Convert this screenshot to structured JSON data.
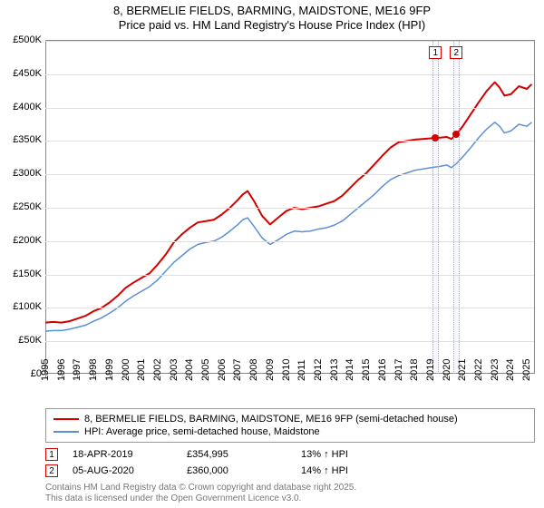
{
  "title": {
    "line1": "8, BERMELIE FIELDS, BARMING, MAIDSTONE, ME16 9FP",
    "line2": "Price paid vs. HM Land Registry's House Price Index (HPI)"
  },
  "chart": {
    "type": "line",
    "background_color": "#ffffff",
    "grid_color": "#e0e0e0",
    "axis_color": "#888888",
    "xlim": [
      1995,
      2025.5
    ],
    "ylim": [
      0,
      500000
    ],
    "y_ticks": [
      {
        "v": 0,
        "label": "£0"
      },
      {
        "v": 50000,
        "label": "£50K"
      },
      {
        "v": 100000,
        "label": "£100K"
      },
      {
        "v": 150000,
        "label": "£150K"
      },
      {
        "v": 200000,
        "label": "£200K"
      },
      {
        "v": 250000,
        "label": "£250K"
      },
      {
        "v": 300000,
        "label": "£300K"
      },
      {
        "v": 350000,
        "label": "£350K"
      },
      {
        "v": 400000,
        "label": "£400K"
      },
      {
        "v": 450000,
        "label": "£450K"
      },
      {
        "v": 500000,
        "label": "£500K"
      }
    ],
    "x_ticks": [
      1995,
      1996,
      1997,
      1998,
      1999,
      2000,
      2001,
      2002,
      2003,
      2004,
      2005,
      2006,
      2007,
      2008,
      2009,
      2010,
      2011,
      2012,
      2013,
      2014,
      2015,
      2016,
      2017,
      2018,
      2019,
      2020,
      2021,
      2022,
      2023,
      2024,
      2025
    ],
    "series": [
      {
        "id": "property",
        "label": "8, BERMELIE FIELDS, BARMING, MAIDSTONE, ME16 9FP (semi-detached house)",
        "color": "#d40000",
        "line_width": 2,
        "data": [
          [
            1995,
            78000
          ],
          [
            1995.5,
            79000
          ],
          [
            1996,
            78000
          ],
          [
            1996.5,
            80000
          ],
          [
            1997,
            84000
          ],
          [
            1997.5,
            88000
          ],
          [
            1998,
            95000
          ],
          [
            1998.5,
            100000
          ],
          [
            1999,
            108000
          ],
          [
            1999.5,
            118000
          ],
          [
            2000,
            130000
          ],
          [
            2000.5,
            138000
          ],
          [
            2001,
            145000
          ],
          [
            2001.5,
            152000
          ],
          [
            2002,
            165000
          ],
          [
            2002.5,
            180000
          ],
          [
            2003,
            198000
          ],
          [
            2003.5,
            210000
          ],
          [
            2004,
            220000
          ],
          [
            2004.5,
            228000
          ],
          [
            2005,
            230000
          ],
          [
            2005.5,
            232000
          ],
          [
            2006,
            240000
          ],
          [
            2006.5,
            250000
          ],
          [
            2007,
            262000
          ],
          [
            2007.3,
            270000
          ],
          [
            2007.6,
            275000
          ],
          [
            2008,
            260000
          ],
          [
            2008.5,
            238000
          ],
          [
            2009,
            225000
          ],
          [
            2009.5,
            235000
          ],
          [
            2010,
            245000
          ],
          [
            2010.5,
            250000
          ],
          [
            2011,
            248000
          ],
          [
            2011.5,
            250000
          ],
          [
            2012,
            252000
          ],
          [
            2012.5,
            256000
          ],
          [
            2013,
            260000
          ],
          [
            2013.5,
            268000
          ],
          [
            2014,
            280000
          ],
          [
            2014.5,
            292000
          ],
          [
            2015,
            302000
          ],
          [
            2015.5,
            315000
          ],
          [
            2016,
            328000
          ],
          [
            2016.5,
            340000
          ],
          [
            2017,
            348000
          ],
          [
            2017.5,
            350000
          ],
          [
            2018,
            352000
          ],
          [
            2018.5,
            353000
          ],
          [
            2019,
            354000
          ],
          [
            2019.3,
            354995
          ],
          [
            2019.6,
            355000
          ],
          [
            2020,
            356000
          ],
          [
            2020.3,
            353000
          ],
          [
            2020.6,
            360000
          ],
          [
            2021,
            372000
          ],
          [
            2021.5,
            390000
          ],
          [
            2022,
            408000
          ],
          [
            2022.5,
            425000
          ],
          [
            2023,
            438000
          ],
          [
            2023.3,
            430000
          ],
          [
            2023.6,
            418000
          ],
          [
            2024,
            420000
          ],
          [
            2024.5,
            432000
          ],
          [
            2025,
            428000
          ],
          [
            2025.3,
            435000
          ]
        ],
        "markers": [
          {
            "x": 2019.3,
            "y": 354995
          },
          {
            "x": 2020.6,
            "y": 360000
          }
        ]
      },
      {
        "id": "hpi",
        "label": "HPI: Average price, semi-detached house, Maidstone",
        "color": "#5b8fd6",
        "line_width": 1.5,
        "data": [
          [
            1995,
            65000
          ],
          [
            1995.5,
            66000
          ],
          [
            1996,
            66000
          ],
          [
            1996.5,
            68000
          ],
          [
            1997,
            71000
          ],
          [
            1997.5,
            74000
          ],
          [
            1998,
            80000
          ],
          [
            1998.5,
            85000
          ],
          [
            1999,
            92000
          ],
          [
            1999.5,
            100000
          ],
          [
            2000,
            110000
          ],
          [
            2000.5,
            118000
          ],
          [
            2001,
            125000
          ],
          [
            2001.5,
            132000
          ],
          [
            2002,
            142000
          ],
          [
            2002.5,
            155000
          ],
          [
            2003,
            168000
          ],
          [
            2003.5,
            178000
          ],
          [
            2004,
            188000
          ],
          [
            2004.5,
            195000
          ],
          [
            2005,
            198000
          ],
          [
            2005.5,
            200000
          ],
          [
            2006,
            206000
          ],
          [
            2006.5,
            215000
          ],
          [
            2007,
            225000
          ],
          [
            2007.3,
            232000
          ],
          [
            2007.6,
            235000
          ],
          [
            2008,
            222000
          ],
          [
            2008.5,
            205000
          ],
          [
            2009,
            195000
          ],
          [
            2009.5,
            202000
          ],
          [
            2010,
            210000
          ],
          [
            2010.5,
            215000
          ],
          [
            2011,
            214000
          ],
          [
            2011.5,
            215000
          ],
          [
            2012,
            218000
          ],
          [
            2012.5,
            220000
          ],
          [
            2013,
            224000
          ],
          [
            2013.5,
            230000
          ],
          [
            2014,
            240000
          ],
          [
            2014.5,
            250000
          ],
          [
            2015,
            260000
          ],
          [
            2015.5,
            270000
          ],
          [
            2016,
            282000
          ],
          [
            2016.5,
            292000
          ],
          [
            2017,
            298000
          ],
          [
            2017.5,
            302000
          ],
          [
            2018,
            306000
          ],
          [
            2018.5,
            308000
          ],
          [
            2019,
            310000
          ],
          [
            2019.3,
            311000
          ],
          [
            2019.6,
            312000
          ],
          [
            2020,
            314000
          ],
          [
            2020.3,
            310000
          ],
          [
            2020.6,
            316000
          ],
          [
            2021,
            326000
          ],
          [
            2021.5,
            340000
          ],
          [
            2022,
            355000
          ],
          [
            2022.5,
            368000
          ],
          [
            2023,
            378000
          ],
          [
            2023.3,
            372000
          ],
          [
            2023.6,
            362000
          ],
          [
            2024,
            365000
          ],
          [
            2024.5,
            375000
          ],
          [
            2025,
            372000
          ],
          [
            2025.3,
            378000
          ]
        ]
      }
    ],
    "bands": [
      {
        "x_from": 2019.1,
        "x_to": 2019.5,
        "flag": "1",
        "flag_color": "#d40000"
      },
      {
        "x_from": 2020.4,
        "x_to": 2020.8,
        "flag": "2",
        "flag_color": "#d40000"
      }
    ]
  },
  "legend": {
    "border_color": "#999999"
  },
  "sales": [
    {
      "flag": "1",
      "flag_color": "#d40000",
      "date": "18-APR-2019",
      "price": "£354,995",
      "delta": "13% ↑ HPI"
    },
    {
      "flag": "2",
      "flag_color": "#d40000",
      "date": "05-AUG-2020",
      "price": "£360,000",
      "delta": "14% ↑ HPI"
    }
  ],
  "footer": {
    "line1": "Contains HM Land Registry data © Crown copyright and database right 2025.",
    "line2": "This data is licensed under the Open Government Licence v3.0."
  }
}
